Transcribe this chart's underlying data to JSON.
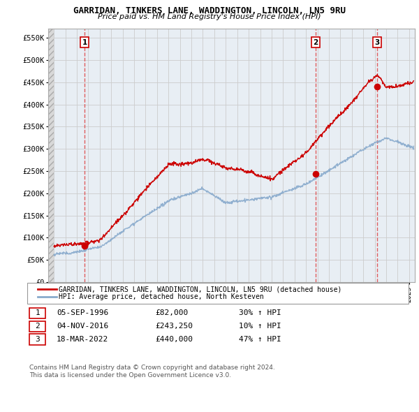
{
  "title": "GARRIDAN, TINKERS LANE, WADDINGTON, LINCOLN, LN5 9RU",
  "subtitle": "Price paid vs. HM Land Registry's House Price Index (HPI)",
  "xlim": [
    1993.5,
    2025.5
  ],
  "ylim": [
    0,
    570000
  ],
  "yticks": [
    0,
    50000,
    100000,
    150000,
    200000,
    250000,
    300000,
    350000,
    400000,
    450000,
    500000,
    550000
  ],
  "ytick_labels": [
    "£0",
    "£50K",
    "£100K",
    "£150K",
    "£200K",
    "£250K",
    "£300K",
    "£350K",
    "£400K",
    "£450K",
    "£500K",
    "£550K"
  ],
  "sale_dates": [
    1996.67,
    2016.84,
    2022.21
  ],
  "sale_prices": [
    82000,
    243250,
    440000
  ],
  "sale_labels": [
    "1",
    "2",
    "3"
  ],
  "legend_red": "GARRIDAN, TINKERS LANE, WADDINGTON, LINCOLN, LN5 9RU (detached house)",
  "legend_blue": "HPI: Average price, detached house, North Kesteven",
  "table_entries": [
    {
      "label": "1",
      "date": "05-SEP-1996",
      "price": "£82,000",
      "change": "30% ↑ HPI"
    },
    {
      "label": "2",
      "date": "04-NOV-2016",
      "price": "£243,250",
      "change": "10% ↑ HPI"
    },
    {
      "label": "3",
      "date": "18-MAR-2022",
      "price": "£440,000",
      "change": "47% ↑ HPI"
    }
  ],
  "footnote": "Contains HM Land Registry data © Crown copyright and database right 2024.\nThis data is licensed under the Open Government Licence v3.0.",
  "red_color": "#cc0000",
  "blue_color": "#88aacc",
  "dashed_color": "#dd4444",
  "grid_color": "#cccccc",
  "bg_color": "#e8eef4"
}
